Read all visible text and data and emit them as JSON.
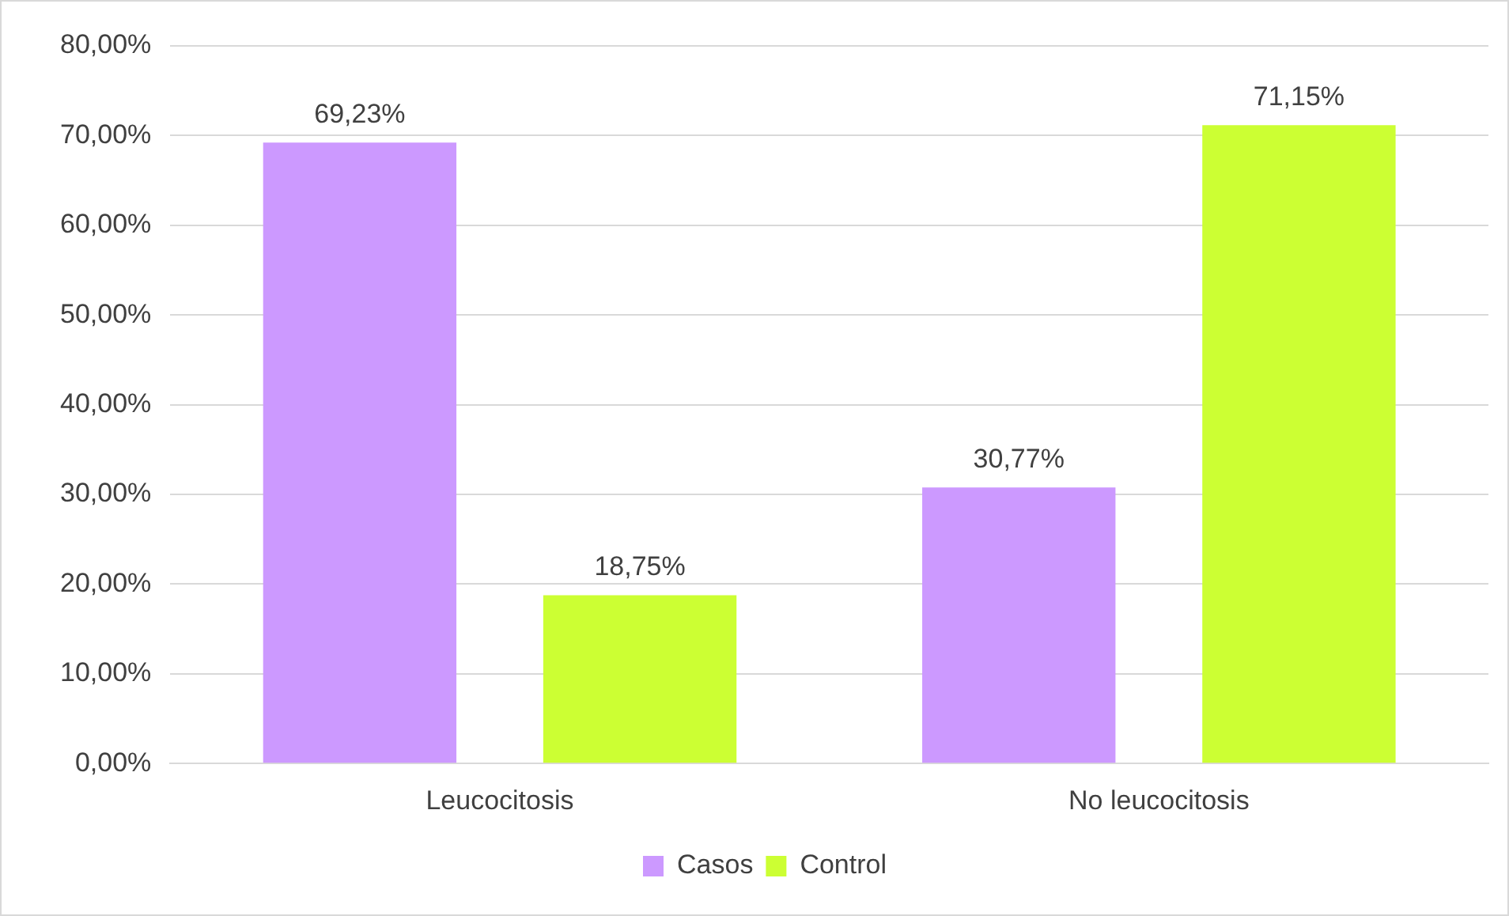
{
  "chart_data": {
    "type": "bar",
    "categories": [
      "Leucocitosis",
      "No leucocitosis"
    ],
    "series": [
      {
        "name": "Casos",
        "color": "#cc99ff",
        "values": [
          69.23,
          30.77
        ],
        "value_labels": [
          "69,23%",
          "30,77%"
        ]
      },
      {
        "name": "Control",
        "color": "#ccff33",
        "values": [
          18.75,
          71.15
        ],
        "value_labels": [
          "18,75%",
          "71,15%"
        ]
      }
    ],
    "ylim": [
      0,
      80
    ],
    "yticks": [
      {
        "value": 0,
        "label": "0,00%"
      },
      {
        "value": 10,
        "label": "10,00%"
      },
      {
        "value": 20,
        "label": "20,00%"
      },
      {
        "value": 30,
        "label": "30,00%"
      },
      {
        "value": 40,
        "label": "40,00%"
      },
      {
        "value": 50,
        "label": "50,00%"
      },
      {
        "value": 60,
        "label": "60,00%"
      },
      {
        "value": 70,
        "label": "70,00%"
      },
      {
        "value": 80,
        "label": "80,00%"
      }
    ],
    "grid": "y",
    "legend": "bottom"
  }
}
